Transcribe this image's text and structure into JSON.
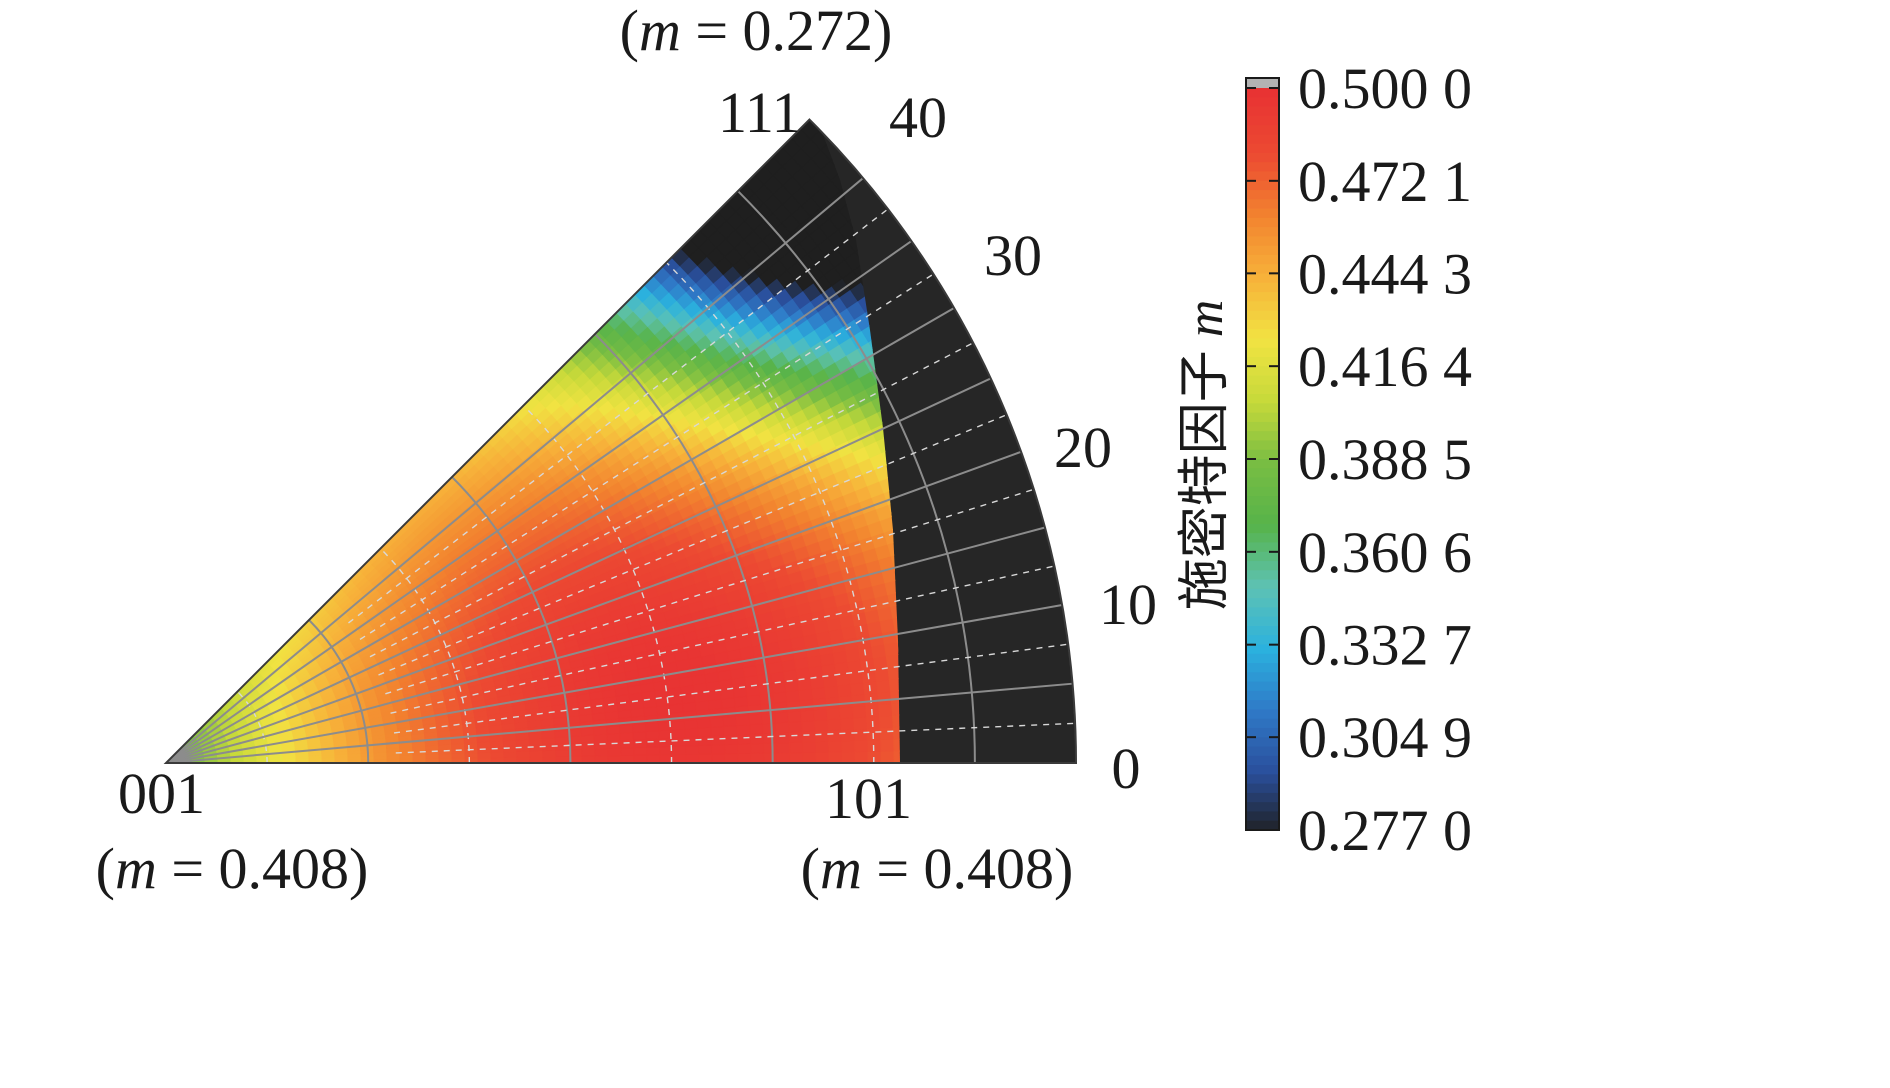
{
  "chart_data": {
    "type": "heatmap",
    "description_type": "inverse pole figure contour map",
    "colorbar_title_text": "施密特因子",
    "colorbar_title_var": "m",
    "corners": [
      {
        "key": "001",
        "label": "001",
        "m_prefix": "(",
        "m_var": "m",
        "m_text": " = 0.408)",
        "m": 0.408
      },
      {
        "key": "101",
        "label": "101",
        "m_prefix": "(",
        "m_var": "m",
        "m_text": " = 0.408)",
        "m": 0.408
      },
      {
        "key": "111",
        "label": "111",
        "m_prefix": "(",
        "m_var": "m",
        "m_text": " = 0.272)",
        "m": 0.272
      }
    ],
    "radial_ticks": [
      "0",
      "10",
      "20",
      "30",
      "40"
    ],
    "radial_values": [
      0,
      10,
      20,
      30,
      40
    ],
    "colorbar": {
      "ticks": [
        "0.500 0",
        "0.472 1",
        "0.444 3",
        "0.416 4",
        "0.388 5",
        "0.360 6",
        "0.332 7",
        "0.304 9",
        "0.277 0"
      ],
      "values": [
        0.5,
        0.4721,
        0.4443,
        0.4164,
        0.3885,
        0.3606,
        0.3327,
        0.3049,
        0.277
      ],
      "range": [
        0.277,
        0.5
      ],
      "stops": [
        "#1f1f1f",
        "#2a4f9c",
        "#2f79c7",
        "#2bb1de",
        "#5dc2b4",
        "#57b34a",
        "#78bd43",
        "#c6d93a",
        "#f1e342",
        "#f7b23a",
        "#f2832f",
        "#ec4a32",
        "#e83333"
      ],
      "over_color": "#b3b3b3"
    },
    "colors": {
      "outside_region": "#262626",
      "grid_solid": "#8c8c8c",
      "grid_dashed": "#d8d8d8"
    }
  }
}
